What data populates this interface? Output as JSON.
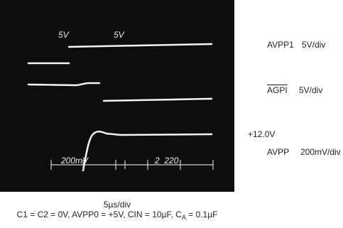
{
  "chart_data": {
    "type": "line",
    "screen_bg": "#0d0d0d",
    "trace_color": "#f4f4f4",
    "scope_labels": {
      "ch1": "5V",
      "ch2": "5V",
      "ch3_left": "200mV",
      "ch3_right": "2  220"
    },
    "channels": [
      {
        "label": "AVPP1",
        "scale": "5V/div",
        "label_overline": false
      },
      {
        "label": "AGPI",
        "scale": "5V/div",
        "label_overline": true
      },
      {
        "offset": "+12.0V",
        "label": "AVPP",
        "scale": "200mV/div",
        "label_overline": false
      }
    ],
    "timebase": "5µs/div",
    "caption": {
      "line2_main": "C1 = C2 = 0V, AVPP0 = +5V, CIN = 10µF, C",
      "line2_sub": "A",
      "line2_tail": " = 0.1µF"
    }
  }
}
